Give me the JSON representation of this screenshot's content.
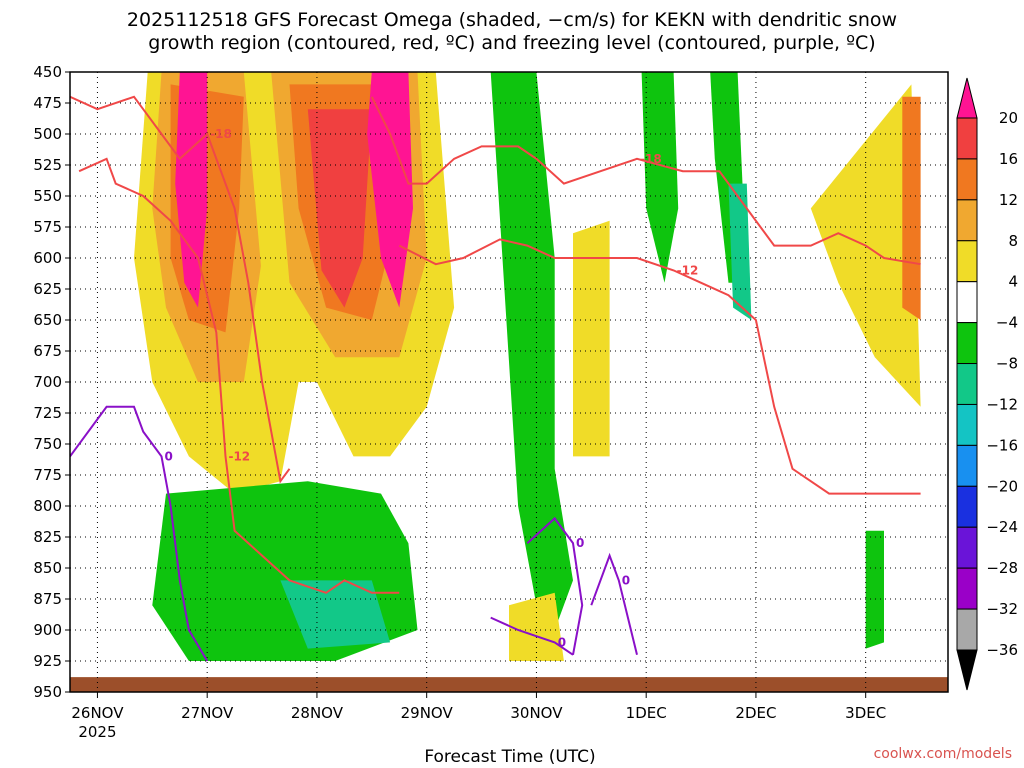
{
  "title": {
    "line1": "2025112518 GFS Forecast Omega (shaded, −cm/s) for KEKN with dendritic snow",
    "line2": "growth region (contoured, red, ºC) and freezing level (contoured, purple, ºC)"
  },
  "credit": "coolwx.com/models",
  "chart_data": {
    "type": "heatmap",
    "title": "2025112518 GFS Forecast Omega (shaded, −cm/s) for KEKN with dendritic snow growth region (contoured, red, ºC) and freezing level (contoured, purple, ºC)",
    "xlabel": "Forecast Time (UTC)",
    "ylabel": "",
    "x_ticks": [
      "26NOV",
      "27NOV",
      "28NOV",
      "29NOV",
      "30NOV",
      "1DEC",
      "2DEC",
      "3DEC"
    ],
    "x_sublabel": "2025",
    "x_range_hours": [
      -6,
      186
    ],
    "y_levels": [
      450,
      475,
      500,
      525,
      550,
      575,
      600,
      625,
      650,
      675,
      700,
      725,
      750,
      775,
      800,
      825,
      850,
      875,
      900,
      925,
      950
    ],
    "y_range": [
      450,
      950
    ],
    "y_axis": "pressure (hPa), inverted",
    "grid": true,
    "colorbar": {
      "labels": [
        "20",
        "16",
        "12",
        "8",
        "4",
        "−4",
        "−8",
        "−12",
        "−16",
        "−20",
        "−24",
        "−28",
        "−32",
        "−36"
      ],
      "bands": [
        {
          "from": 20,
          "to": 99,
          "color": "#ff1493"
        },
        {
          "from": 16,
          "to": 20,
          "color": "#f04040"
        },
        {
          "from": 12,
          "to": 16,
          "color": "#f07820"
        },
        {
          "from": 8,
          "to": 12,
          "color": "#f0a830"
        },
        {
          "from": 4,
          "to": 8,
          "color": "#f0dc28"
        },
        {
          "from": -4,
          "to": 4,
          "color": "#ffffff"
        },
        {
          "from": -8,
          "to": -4,
          "color": "#0ec40e"
        },
        {
          "from": -12,
          "to": -8,
          "color": "#12c888"
        },
        {
          "from": -16,
          "to": -12,
          "color": "#14c4c4"
        },
        {
          "from": -20,
          "to": -16,
          "color": "#1890f0"
        },
        {
          "from": -24,
          "to": -20,
          "color": "#1a30e0"
        },
        {
          "from": -28,
          "to": -24,
          "color": "#6a14d8"
        },
        {
          "from": -32,
          "to": -28,
          "color": "#9a00c8"
        },
        {
          "from": -36,
          "to": -32,
          "color": "#a8a8a8"
        },
        {
          "from": -99,
          "to": -36,
          "color": "#000000"
        }
      ]
    },
    "omega_regions": [
      {
        "value": 6,
        "points": [
          [
            11,
            450
          ],
          [
            42,
            450
          ],
          [
            44,
            700
          ],
          [
            40,
            780
          ],
          [
            30,
            790
          ],
          [
            20,
            760
          ],
          [
            12,
            700
          ],
          [
            8,
            600
          ]
        ]
      },
      {
        "value": 10,
        "points": [
          [
            14,
            450
          ],
          [
            36,
            450
          ],
          [
            36,
            600
          ],
          [
            32,
            700
          ],
          [
            22,
            700
          ],
          [
            15,
            640
          ],
          [
            12,
            560
          ]
        ]
      },
      {
        "value": 14,
        "points": [
          [
            16,
            460
          ],
          [
            32,
            470
          ],
          [
            31,
            560
          ],
          [
            28,
            660
          ],
          [
            20,
            650
          ],
          [
            16,
            600
          ]
        ]
      },
      {
        "value": 22,
        "points": [
          [
            18,
            450
          ],
          [
            24,
            450
          ],
          [
            24,
            560
          ],
          [
            22,
            640
          ],
          [
            19,
            620
          ],
          [
            17,
            540
          ]
        ]
      },
      {
        "value": 6,
        "points": [
          [
            32,
            450
          ],
          [
            74,
            450
          ],
          [
            78,
            640
          ],
          [
            72,
            720
          ],
          [
            64,
            760
          ],
          [
            56,
            760
          ],
          [
            48,
            700
          ],
          [
            38,
            700
          ]
        ]
      },
      {
        "value": 10,
        "points": [
          [
            38,
            450
          ],
          [
            70,
            450
          ],
          [
            72,
            600
          ],
          [
            66,
            680
          ],
          [
            52,
            680
          ],
          [
            42,
            620
          ]
        ]
      },
      {
        "value": 14,
        "points": [
          [
            42,
            460
          ],
          [
            68,
            460
          ],
          [
            66,
            560
          ],
          [
            60,
            650
          ],
          [
            50,
            640
          ],
          [
            44,
            560
          ]
        ]
      },
      {
        "value": 18,
        "points": [
          [
            46,
            480
          ],
          [
            60,
            480
          ],
          [
            58,
            600
          ],
          [
            54,
            640
          ],
          [
            49,
            610
          ]
        ]
      },
      {
        "value": 22,
        "points": [
          [
            60,
            450
          ],
          [
            68,
            450
          ],
          [
            69,
            560
          ],
          [
            66,
            640
          ],
          [
            62,
            600
          ],
          [
            59,
            500
          ]
        ]
      },
      {
        "value": -6,
        "points": [
          [
            15,
            790
          ],
          [
            46,
            780
          ],
          [
            62,
            790
          ],
          [
            68,
            830
          ],
          [
            70,
            900
          ],
          [
            52,
            925
          ],
          [
            20,
            925
          ],
          [
            12,
            880
          ]
        ]
      },
      {
        "value": -10,
        "points": [
          [
            40,
            860
          ],
          [
            60,
            860
          ],
          [
            64,
            910
          ],
          [
            46,
            915
          ]
        ]
      },
      {
        "value": -6,
        "points": [
          [
            86,
            450
          ],
          [
            96,
            450
          ],
          [
            100,
            600
          ],
          [
            100,
            770
          ],
          [
            104,
            860
          ],
          [
            98,
            920
          ],
          [
            92,
            800
          ]
        ]
      },
      {
        "value": 6,
        "points": [
          [
            90,
            880
          ],
          [
            100,
            870
          ],
          [
            102,
            925
          ],
          [
            90,
            925
          ]
        ]
      },
      {
        "value": -6,
        "points": [
          [
            119,
            450
          ],
          [
            126,
            450
          ],
          [
            127,
            560
          ],
          [
            124,
            620
          ],
          [
            120,
            560
          ]
        ]
      },
      {
        "value": 6,
        "points": [
          [
            104,
            580
          ],
          [
            112,
            570
          ],
          [
            112,
            760
          ],
          [
            104,
            760
          ]
        ]
      },
      {
        "value": -6,
        "points": [
          [
            134,
            450
          ],
          [
            140,
            450
          ],
          [
            142,
            620
          ],
          [
            138,
            620
          ],
          [
            135,
            520
          ]
        ]
      },
      {
        "value": -10,
        "points": [
          [
            138,
            540
          ],
          [
            142,
            540
          ],
          [
            143,
            650
          ],
          [
            139,
            640
          ]
        ]
      },
      {
        "value": -6,
        "points": [
          [
            168,
            820
          ],
          [
            172,
            820
          ],
          [
            172,
            910
          ],
          [
            168,
            915
          ]
        ]
      },
      {
        "value": 6,
        "points": [
          [
            156,
            560
          ],
          [
            178,
            460
          ],
          [
            180,
            720
          ],
          [
            170,
            680
          ],
          [
            162,
            620
          ]
        ]
      },
      {
        "value": 12,
        "points": [
          [
            176,
            470
          ],
          [
            180,
            470
          ],
          [
            180,
            650
          ],
          [
            176,
            640
          ]
        ]
      }
    ],
    "contours_red": [
      {
        "label": "-18",
        "points": [
          [
            -6,
            470
          ],
          [
            0,
            480
          ],
          [
            8,
            470
          ],
          [
            10,
            480
          ],
          [
            14,
            500
          ],
          [
            18,
            520
          ],
          [
            24,
            500
          ],
          [
            30,
            560
          ],
          [
            33,
            620
          ],
          [
            36,
            700
          ],
          [
            40,
            780
          ],
          [
            42,
            770
          ]
        ]
      },
      {
        "label": "-12",
        "points": [
          [
            -4,
            530
          ],
          [
            2,
            520
          ],
          [
            4,
            540
          ],
          [
            10,
            550
          ],
          [
            16,
            570
          ],
          [
            22,
            600
          ],
          [
            26,
            660
          ],
          [
            28,
            760
          ],
          [
            30,
            820
          ],
          [
            36,
            840
          ],
          [
            42,
            860
          ],
          [
            50,
            870
          ],
          [
            54,
            860
          ],
          [
            60,
            870
          ],
          [
            66,
            870
          ]
        ]
      },
      {
        "label": "-18",
        "points": [
          [
            60,
            470
          ],
          [
            64,
            500
          ],
          [
            68,
            540
          ],
          [
            72,
            540
          ],
          [
            78,
            520
          ],
          [
            84,
            510
          ],
          [
            92,
            510
          ],
          [
            96,
            520
          ],
          [
            102,
            540
          ],
          [
            110,
            530
          ],
          [
            118,
            520
          ],
          [
            128,
            530
          ],
          [
            136,
            530
          ],
          [
            140,
            550
          ],
          [
            148,
            590
          ],
          [
            156,
            590
          ],
          [
            162,
            580
          ],
          [
            168,
            590
          ],
          [
            172,
            600
          ],
          [
            180,
            605
          ]
        ]
      },
      {
        "label": "-12",
        "points": [
          [
            66,
            590
          ],
          [
            74,
            605
          ],
          [
            80,
            600
          ],
          [
            88,
            585
          ],
          [
            94,
            590
          ],
          [
            100,
            600
          ],
          [
            110,
            600
          ],
          [
            118,
            600
          ],
          [
            126,
            610
          ],
          [
            132,
            620
          ],
          [
            138,
            630
          ],
          [
            144,
            650
          ],
          [
            148,
            720
          ],
          [
            152,
            770
          ],
          [
            160,
            790
          ],
          [
            170,
            790
          ],
          [
            180,
            790
          ]
        ]
      }
    ],
    "contours_purple": [
      {
        "label": "0",
        "points": [
          [
            -6,
            760
          ],
          [
            2,
            720
          ],
          [
            8,
            720
          ],
          [
            10,
            740
          ],
          [
            14,
            760
          ],
          [
            16,
            800
          ],
          [
            18,
            860
          ],
          [
            20,
            900
          ],
          [
            24,
            925
          ]
        ]
      },
      {
        "label": "0",
        "points": [
          [
            86,
            890
          ],
          [
            92,
            900
          ],
          [
            100,
            910
          ],
          [
            104,
            920
          ]
        ]
      },
      {
        "label": "0",
        "points": [
          [
            94,
            830
          ],
          [
            100,
            810
          ],
          [
            104,
            830
          ],
          [
            106,
            880
          ],
          [
            104,
            920
          ]
        ]
      },
      {
        "label": "0",
        "points": [
          [
            108,
            880
          ],
          [
            112,
            840
          ],
          [
            114,
            860
          ],
          [
            118,
            920
          ]
        ]
      }
    ]
  }
}
